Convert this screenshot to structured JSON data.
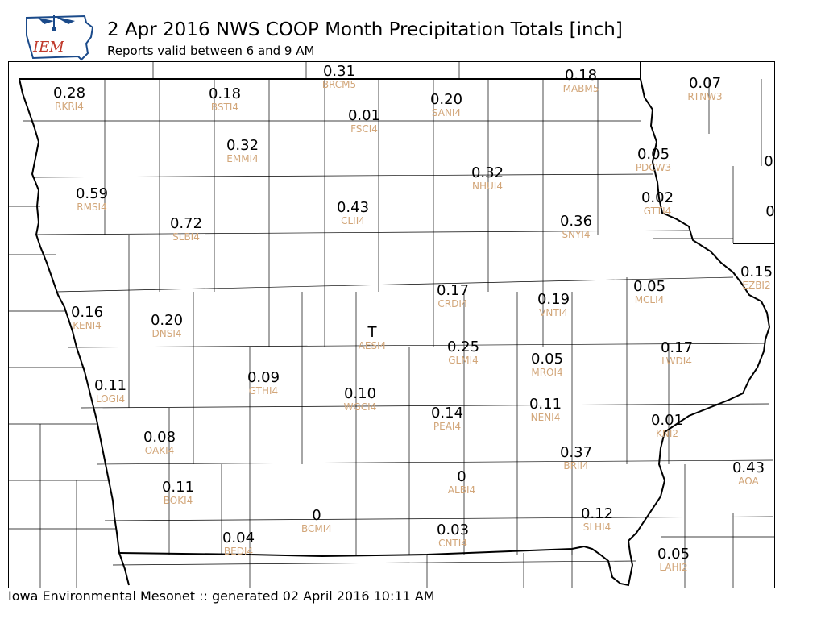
{
  "header": {
    "logo_text": "IEM",
    "title": "2 Apr 2016 NWS COOP Month Precipitation Totals [inch]",
    "subtitle": "Reports valid between 6 and 9 AM"
  },
  "footer": {
    "credit": "Iowa Environmental Mesonet :: generated 02 April 2016 10:11 AM"
  },
  "colors": {
    "value_text": "#000000",
    "station_text": "#d2a679",
    "county_line": "#000000",
    "logo_accent": "#c0392b"
  },
  "stations": [
    {
      "id": "BRCM5",
      "value": "0.31"
    },
    {
      "id": "RKRI4",
      "value": "0.28"
    },
    {
      "id": "BSTI4",
      "value": "0.18"
    },
    {
      "id": "FSCI4",
      "value": "0.01"
    },
    {
      "id": "SANI4",
      "value": "0.20"
    },
    {
      "id": "MABM5",
      "value": "0.18"
    },
    {
      "id": "RTNW3",
      "value": "0.07"
    },
    {
      "id": "EMMI4",
      "value": "0.32"
    },
    {
      "id": "PDCW3",
      "value": "0.05"
    },
    {
      "id": "NHUI4",
      "value": "0.32"
    },
    {
      "id": "RMSI4",
      "value": "0.59"
    },
    {
      "id": "GTTI4",
      "value": "0.02"
    },
    {
      "id": "CLII4",
      "value": "0.43"
    },
    {
      "id": "SLBI4",
      "value": "0.72"
    },
    {
      "id": "SNYI4",
      "value": "0.36"
    },
    {
      "id": "EZBI2",
      "value": "0.15"
    },
    {
      "id": "CRDI4",
      "value": "0.17"
    },
    {
      "id": "VNTI4",
      "value": "0.19"
    },
    {
      "id": "MCLI4",
      "value": "0.05"
    },
    {
      "id": "KENI4",
      "value": "0.16"
    },
    {
      "id": "DNSI4",
      "value": "0.20"
    },
    {
      "id": "AESI4",
      "value": "T"
    },
    {
      "id": "GLMI4",
      "value": "0.25"
    },
    {
      "id": "LWDI4",
      "value": "0.17"
    },
    {
      "id": "MROI4",
      "value": "0.05"
    },
    {
      "id": "LOGI4",
      "value": "0.11"
    },
    {
      "id": "GTHI4",
      "value": "0.09"
    },
    {
      "id": "WGCI4",
      "value": "0.10"
    },
    {
      "id": "NENI4",
      "value": "0.11"
    },
    {
      "id": "PEAI4",
      "value": "0.14"
    },
    {
      "id": "KNI2",
      "value": "0.01"
    },
    {
      "id": "OAKI4",
      "value": "0.08"
    },
    {
      "id": "BRII4",
      "value": "0.37"
    },
    {
      "id": "AOA",
      "value": "0.43"
    },
    {
      "id": "ALBI4",
      "value": "0"
    },
    {
      "id": "BOKI4",
      "value": "0.11"
    },
    {
      "id": "BCMI4",
      "value": "0"
    },
    {
      "id": "SLHI4",
      "value": "0.12"
    },
    {
      "id": "CNTI4",
      "value": "0.03"
    },
    {
      "id": "BEDI4",
      "value": "0.04"
    },
    {
      "id": "LAHI2",
      "value": "0.05"
    }
  ],
  "edge_values": [
    {
      "id": "edge-1",
      "value": "0"
    },
    {
      "id": "edge-2",
      "value": "0"
    }
  ]
}
